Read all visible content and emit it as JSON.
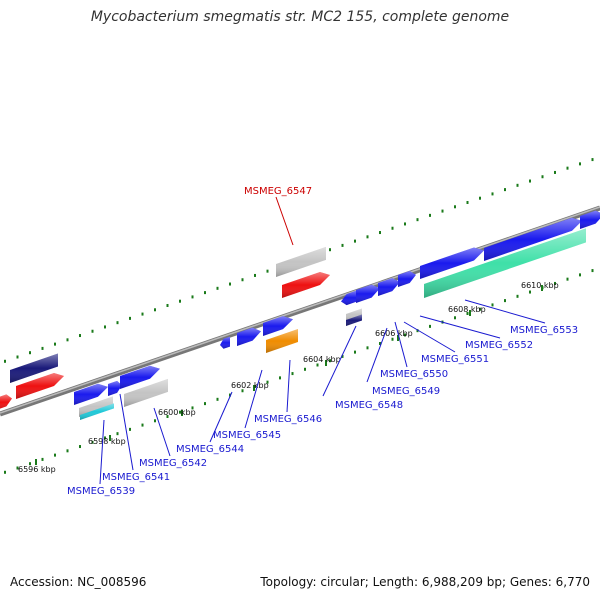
{
  "title": "Mycobacterium smegmatis str. MC2 155, complete genome",
  "footer": {
    "accession": "Accession: NC_008596",
    "stats": "Topology: circular; Length: 6,988,209 bp; Genes: 6,770"
  },
  "colors": {
    "backbone": "#888888",
    "gene_blue": "#1a1aee",
    "gene_navy": "#1a1a7a",
    "gene_red": "#ee1111",
    "gene_gray": "#c4c4c4",
    "gene_orange": "#f08c00",
    "gene_teal": "#3fe0a8",
    "gene_cyan": "#20c8d8",
    "highlight_label": "#cc0000",
    "label": "#1a1ad0",
    "tick": "#1a7a1a"
  },
  "ticks": [
    {
      "label": "6596 kbp"
    },
    {
      "label": "6598 kbp"
    },
    {
      "label": "6600 kbp"
    },
    {
      "label": "6602 kbp"
    },
    {
      "label": "6604 kbp"
    },
    {
      "label": "6606 kbp"
    },
    {
      "label": "6608 kbp"
    },
    {
      "label": "6610 kbp"
    }
  ],
  "labels": [
    {
      "text": "MSMEG_6547",
      "highlight": true
    },
    {
      "text": "MSMEG_6539"
    },
    {
      "text": "MSMEG_6541"
    },
    {
      "text": "MSMEG_6542"
    },
    {
      "text": "MSMEG_6544"
    },
    {
      "text": "MSMEG_6545"
    },
    {
      "text": "MSMEG_6546"
    },
    {
      "text": "MSMEG_6548"
    },
    {
      "text": "MSMEG_6549"
    },
    {
      "text": "MSMEG_6550"
    },
    {
      "text": "MSMEG_6551"
    },
    {
      "text": "MSMEG_6552"
    },
    {
      "text": "MSMEG_6553"
    }
  ]
}
